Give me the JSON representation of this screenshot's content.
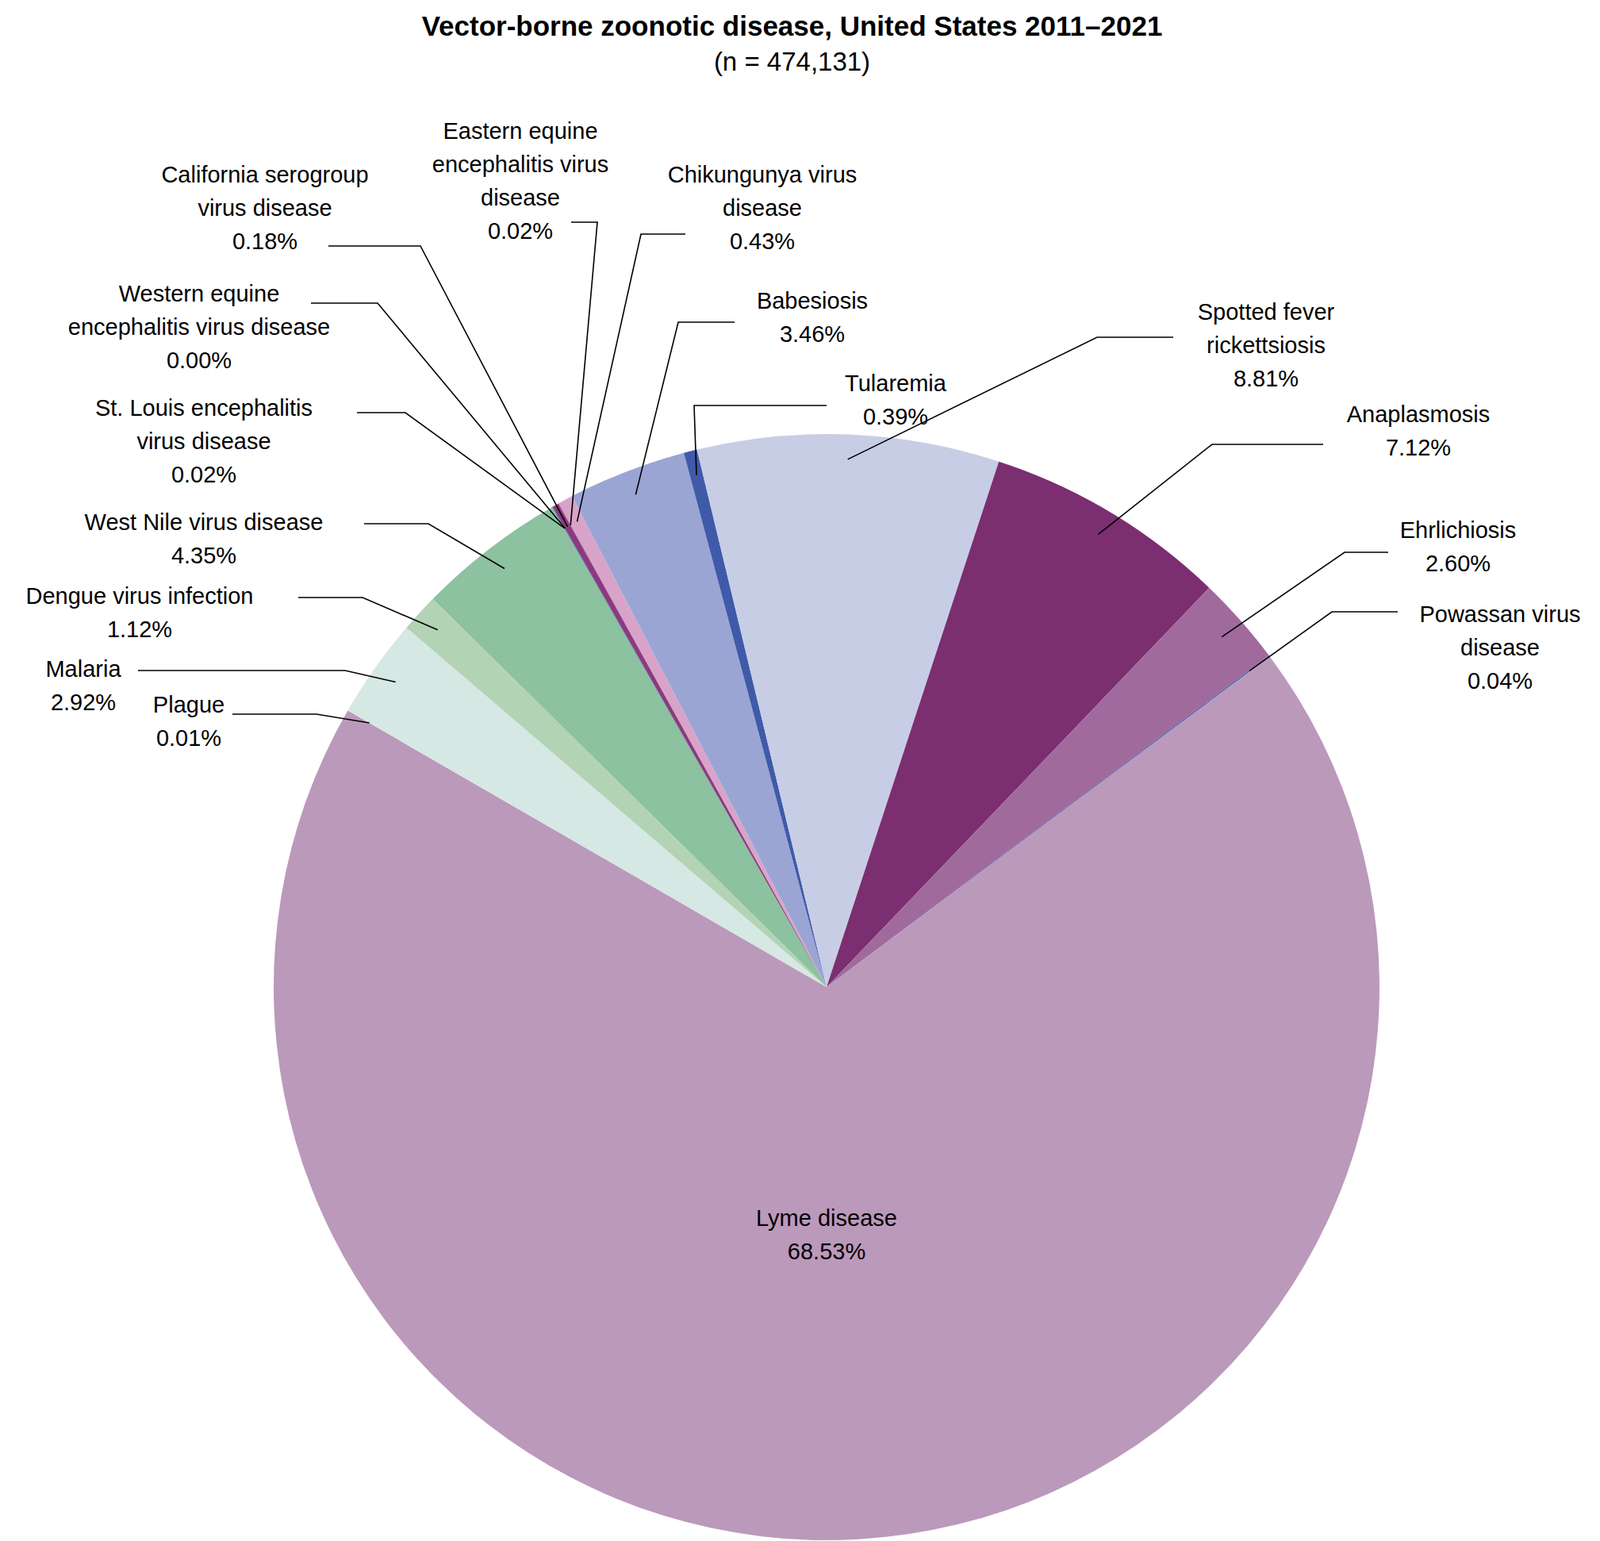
{
  "chart_data": {
    "type": "pie",
    "title": "Vector-borne zoonotic disease, United States 2011–2021",
    "subtitle": "(n = 474,131)",
    "categories": [
      "Plague",
      "Malaria",
      "Dengue virus infection",
      "West Nile virus disease",
      "St. Louis encephalitis virus disease",
      "Western equine encephalitis virus disease",
      "California serogroup virus disease",
      "Eastern equine encephalitis virus disease",
      "Chikungunya virus disease",
      "Babesiosis",
      "Tularemia",
      "Spotted fever rickettsiosis",
      "Anaplasmosis",
      "Ehrlichiosis",
      "Powassan virus disease",
      "Lyme disease"
    ],
    "values": [
      0.01,
      2.92,
      1.12,
      4.35,
      0.02,
      0.0,
      0.18,
      0.02,
      0.43,
      3.46,
      0.39,
      8.81,
      7.12,
      2.6,
      0.04,
      68.53
    ],
    "value_labels": [
      "0.01%",
      "2.92%",
      "1.12%",
      "4.35%",
      "0.02%",
      "0.00%",
      "0.18%",
      "0.02%",
      "0.43%",
      "3.46%",
      "0.39%",
      "8.81%",
      "7.12%",
      "2.60%",
      "0.04%",
      "68.53%"
    ],
    "colors": [
      "#eef3ea",
      "#d6e8e3",
      "#b3d3b5",
      "#8cc29f",
      "#3a5ba8",
      "#cfe0e8",
      "#8b3a7e",
      "#9a4f8e",
      "#d9a3c9",
      "#9ba5d4",
      "#3f5aa8",
      "#c8cde6",
      "#7b2e70",
      "#a06b9c",
      "#4a5fb0",
      "#bb99bb"
    ],
    "data_labels": true
  }
}
